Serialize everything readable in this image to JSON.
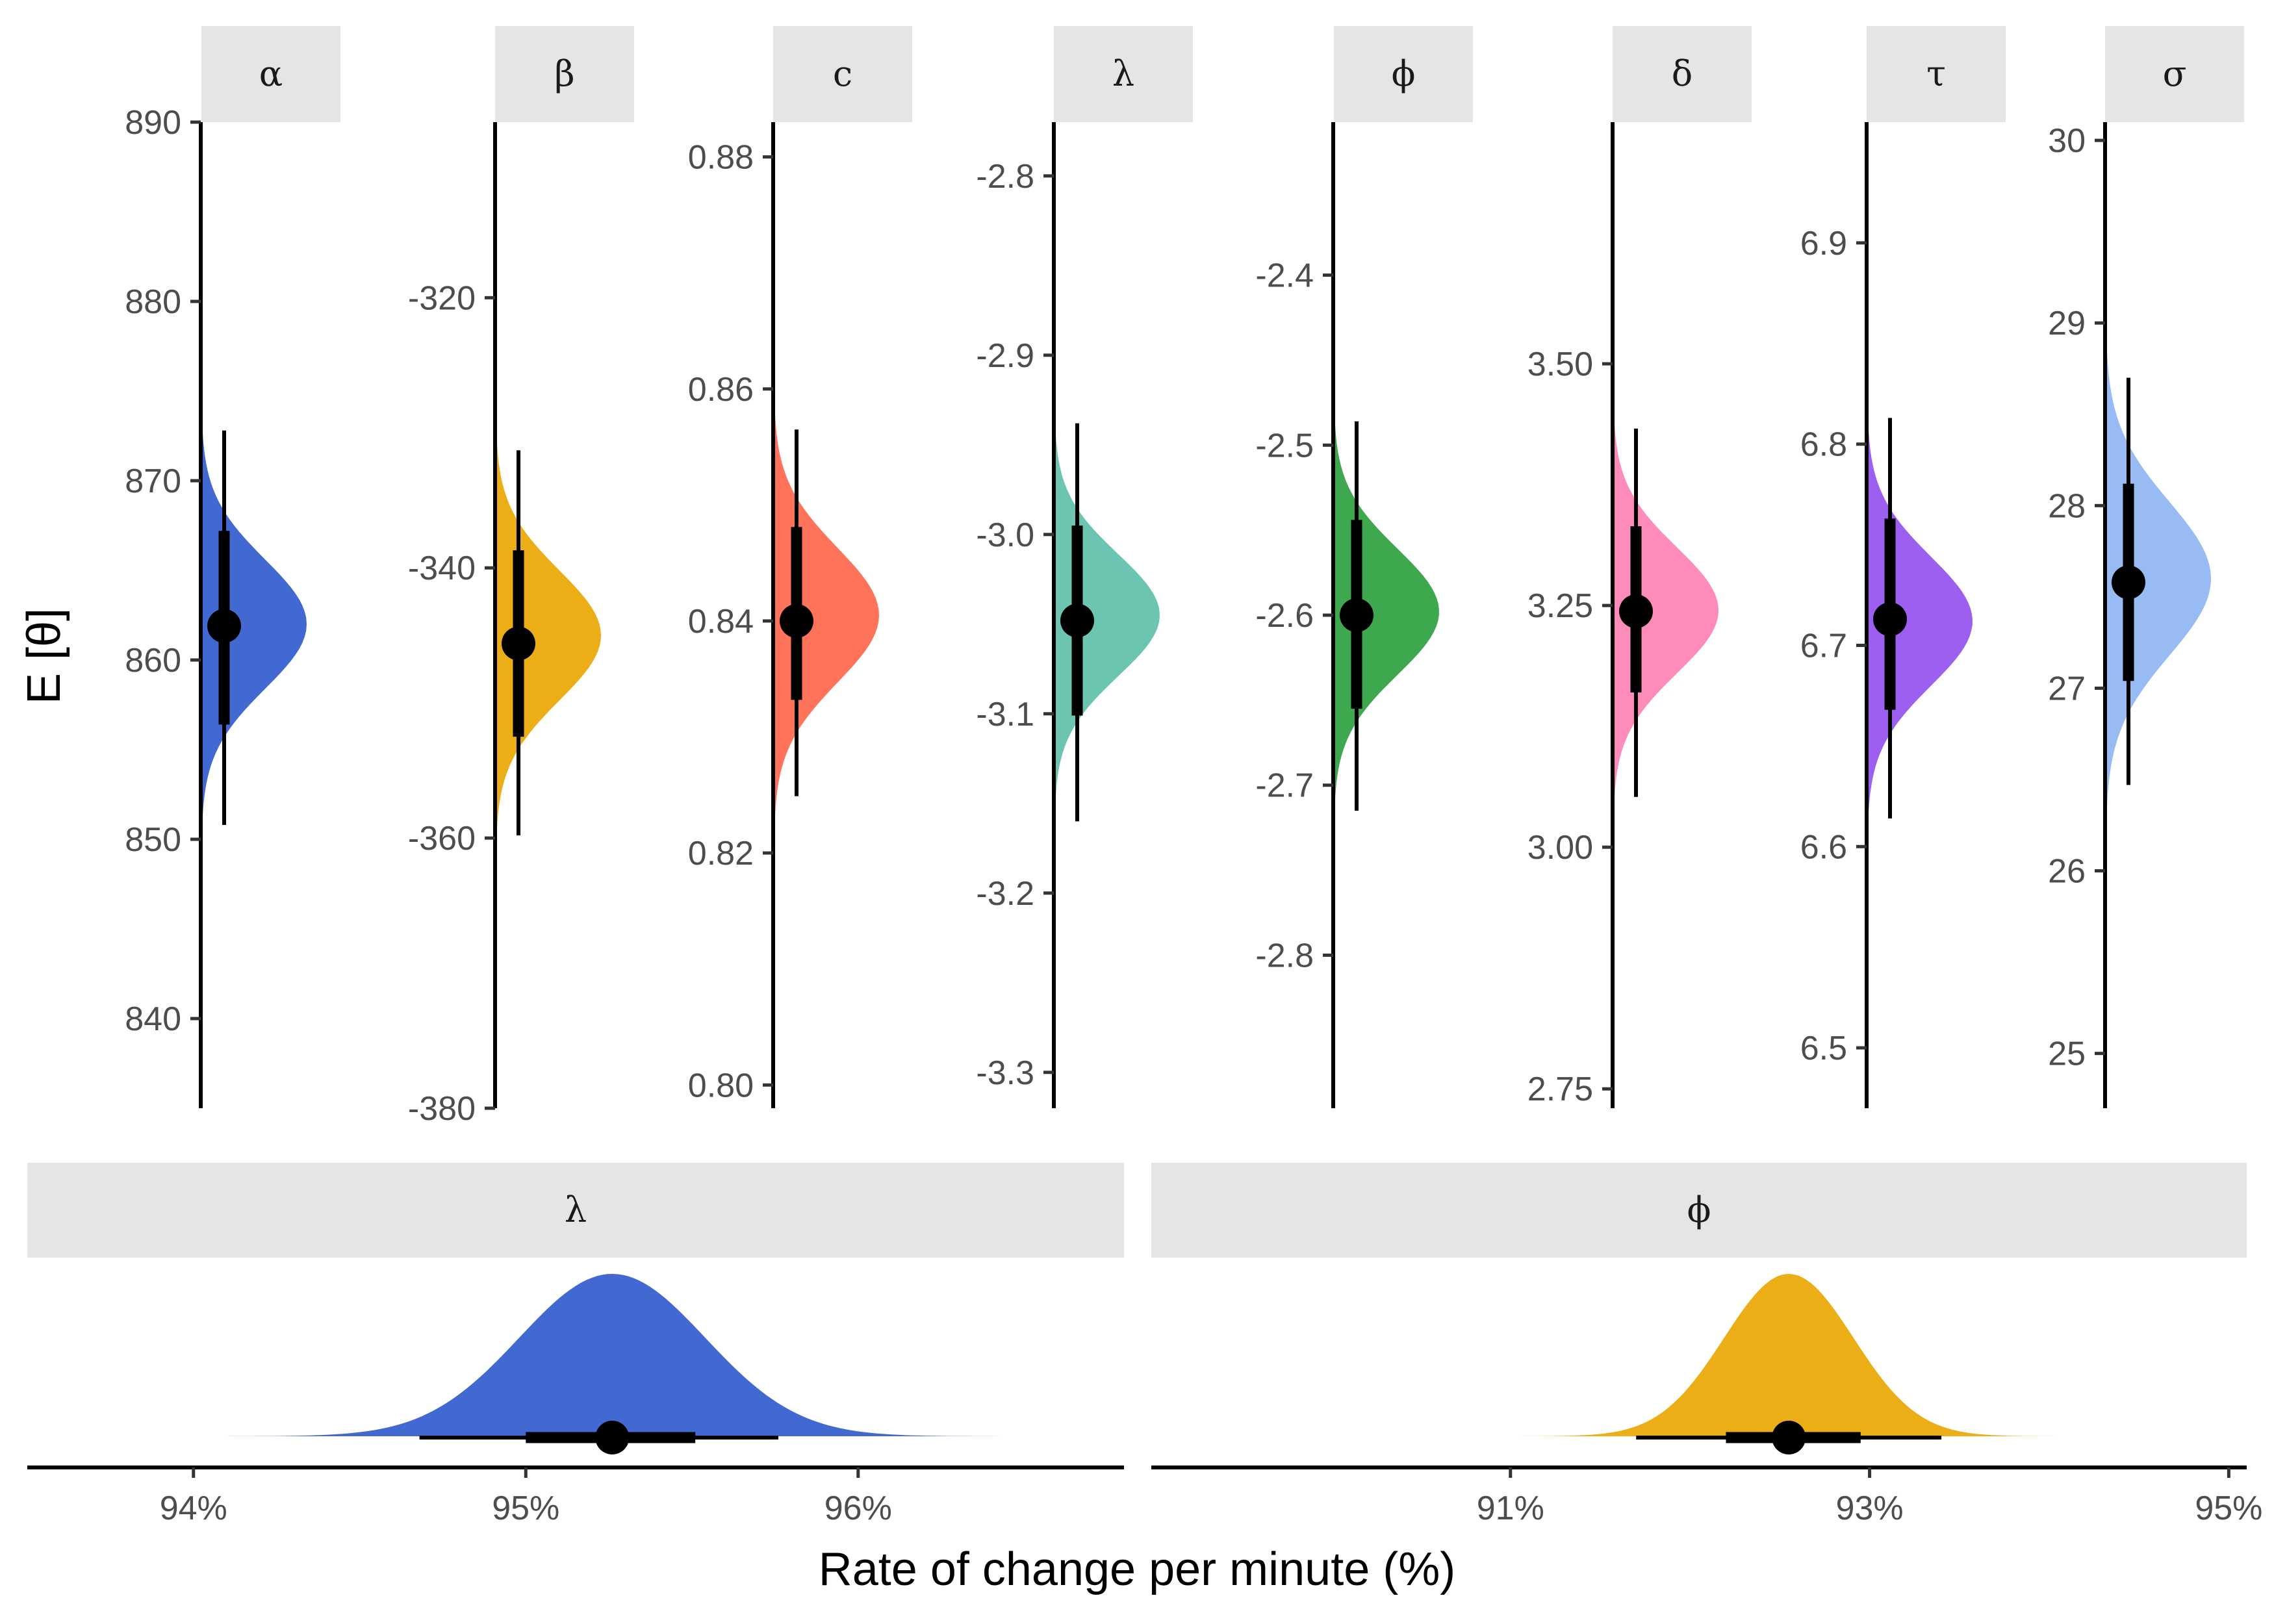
{
  "chart_data": {
    "type": "area",
    "ylabel": "E [θ]",
    "xlabel": "Rate of change per minute (%)",
    "top_panels": [
      {
        "label": "α",
        "color": "#4169d1",
        "ylim": [
          835,
          890
        ],
        "ticks": [
          840,
          850,
          860,
          870,
          880,
          890
        ],
        "tick_labels": [
          "840",
          "850",
          "860",
          "870",
          "880",
          "890"
        ],
        "density_range": [
          838,
          886
        ],
        "median": 861.9,
        "mean": 862.0,
        "sd": 3.6,
        "inner": [
          856.4,
          867.2
        ],
        "outer": [
          850.8,
          872.8
        ]
      },
      {
        "label": "β",
        "color": "#ecae17",
        "ylim": [
          -380,
          -307
        ],
        "ticks": [
          -380,
          -360,
          -340,
          -320
        ],
        "tick_labels": [
          "-380",
          "-360",
          "-340",
          "-320"
        ],
        "density_range": [
          -373,
          -317
        ],
        "median": -345.6,
        "mean": -345.0,
        "sd": 4.8,
        "inner": [
          -352.5,
          -338.7
        ],
        "outer": [
          -359.8,
          -331.3
        ]
      },
      {
        "label": "c",
        "color": "#ff735b",
        "ylim": [
          0.798,
          0.883
        ],
        "ticks": [
          0.8,
          0.82,
          0.84,
          0.86,
          0.88
        ],
        "tick_labels": [
          "0.80",
          "0.82",
          "0.84",
          "0.86",
          "0.88"
        ],
        "density_range": [
          0.808,
          0.879
        ],
        "median": 0.84,
        "mean": 0.8405,
        "sd": 0.0058,
        "inner": [
          0.8332,
          0.8481
        ],
        "outer": [
          0.8249,
          0.8565
        ]
      },
      {
        "label": "λ",
        "color": "#6cc5b0",
        "ylim": [
          -3.32,
          -2.77
        ],
        "ticks": [
          -3.3,
          -3.2,
          -3.1,
          -3.0,
          -2.9,
          -2.8
        ],
        "tick_labels": [
          "-3.3",
          "-3.2",
          "-3.1",
          "-3.0",
          "-2.9",
          "-2.8"
        ],
        "density_range": [
          -3.28,
          -2.82
        ],
        "median": -3.048,
        "mean": -3.045,
        "sd": 0.034,
        "inner": [
          -3.101,
          -2.995
        ],
        "outer": [
          -3.16,
          -2.938
        ]
      },
      {
        "label": "ϕ",
        "color": "#3ea84f",
        "ylim": [
          -2.89,
          -2.31
        ],
        "ticks": [
          -2.8,
          -2.7,
          -2.6,
          -2.5,
          -2.4
        ],
        "tick_labels": [
          "-2.8",
          "-2.7",
          "-2.6",
          "-2.5",
          "-2.4"
        ],
        "density_range": [
          -2.83,
          -2.37
        ],
        "median": -2.6,
        "mean": -2.598,
        "sd": 0.037,
        "inner": [
          -2.655,
          -2.544
        ],
        "outer": [
          -2.715,
          -2.486
        ]
      },
      {
        "label": "δ",
        "color": "#ff8bbb",
        "ylim": [
          2.73,
          3.75
        ],
        "ticks": [
          2.75,
          3.0,
          3.25,
          3.5
        ],
        "tick_labels": [
          "2.75",
          "3.00",
          "3.25",
          "3.50"
        ],
        "density_range": [
          2.87,
          3.62
        ],
        "median": 3.244,
        "mean": 3.245,
        "sd": 0.065,
        "inner": [
          3.16,
          3.332
        ],
        "outer": [
          3.052,
          3.433
        ]
      },
      {
        "label": "τ",
        "color": "#9d5ff0",
        "ylim": [
          6.47,
          6.96
        ],
        "ticks": [
          6.5,
          6.6,
          6.7,
          6.8,
          6.9
        ],
        "tick_labels": [
          "6.5",
          "6.6",
          "6.7",
          "6.8",
          "6.9"
        ],
        "density_range": [
          6.54,
          6.93
        ],
        "median": 6.713,
        "mean": 6.712,
        "sd": 0.032,
        "inner": [
          6.668,
          6.763
        ],
        "outer": [
          6.614,
          6.813
        ]
      },
      {
        "label": "σ",
        "color": "#97bbf2",
        "ylim": [
          24.7,
          30.1
        ],
        "ticks": [
          25,
          26,
          27,
          28,
          29,
          30
        ],
        "tick_labels": [
          "25",
          "26",
          "27",
          "28",
          "29",
          "30"
        ],
        "density_range": [
          25.6,
          29.6
        ],
        "median": 27.58,
        "mean": 27.6,
        "sd": 0.42,
        "inner": [
          27.04,
          28.12
        ],
        "outer": [
          26.47,
          28.7
        ]
      }
    ],
    "bottom_panels": [
      {
        "label": "λ",
        "color": "#4169d1",
        "xlim": [
          93.5,
          96.8
        ],
        "ticks": [
          94,
          95,
          96
        ],
        "tick_labels": [
          "94%",
          "95%",
          "96%"
        ],
        "density_range": [
          94.05,
          96.6
        ],
        "median": 95.26,
        "mean": 95.26,
        "sd": 0.28,
        "inner": [
          95.0,
          95.51
        ],
        "outer": [
          94.68,
          95.76
        ]
      },
      {
        "label": "ϕ",
        "color": "#ecae17",
        "xlim": [
          89.0,
          95.1
        ],
        "ticks": [
          91,
          93,
          95
        ],
        "tick_labels": [
          "91%",
          "93%",
          "95%"
        ],
        "density_range": [
          90.6,
          94.2
        ],
        "median": 92.55,
        "mean": 92.55,
        "sd": 0.36,
        "inner": [
          92.2,
          92.95
        ],
        "outer": [
          91.7,
          93.4
        ]
      }
    ]
  }
}
